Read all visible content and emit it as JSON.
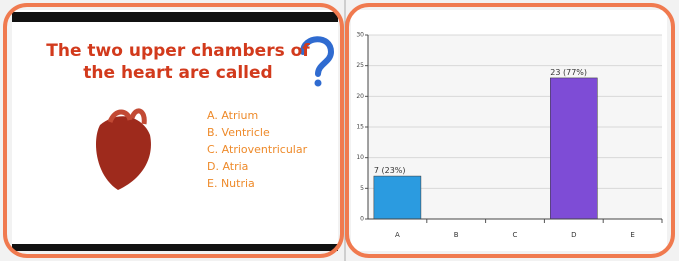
{
  "slide": {
    "title": [
      "The two upper chambers of",
      "the heart are called"
    ],
    "options": [
      "A. Atrium",
      "B. Ventricle",
      "C. Atrioventricular",
      "D. Atria",
      "E. Nutria"
    ]
  },
  "chart_data": {
    "type": "bar",
    "categories": [
      "A",
      "B",
      "C",
      "D",
      "E"
    ],
    "values": [
      7,
      0,
      0,
      23,
      0
    ],
    "value_labels": [
      "7 (23%)",
      null,
      null,
      "23 (77%)",
      null
    ],
    "colors": [
      "#2b9be0",
      "#2b9be0",
      "#2b9be0",
      "#7e4cd6",
      "#2b9be0"
    ],
    "ylim": [
      0,
      30
    ],
    "yticks": [
      0,
      5,
      10,
      15,
      20,
      25,
      30
    ],
    "grid": true
  }
}
